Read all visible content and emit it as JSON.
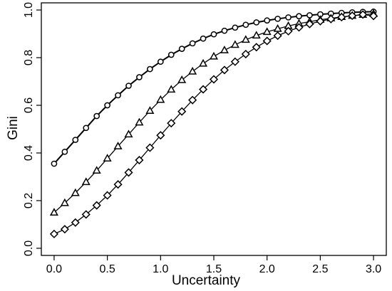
{
  "chart_data": {
    "type": "line",
    "title": "",
    "xlabel": "Uncertainty",
    "ylabel": "Gini",
    "xlim": [
      -0.12,
      3.12
    ],
    "ylim": [
      -0.03,
      1.03
    ],
    "xticks": [
      "0.0",
      "0.5",
      "1.0",
      "1.5",
      "2.0",
      "2.5",
      "3.0"
    ],
    "yticks": [
      "0.0",
      "0.2",
      "0.4",
      "0.6",
      "0.8",
      "1.0"
    ],
    "grid": false,
    "legend": "none",
    "x": [
      0.0,
      0.1,
      0.2,
      0.3,
      0.4,
      0.5,
      0.6,
      0.7,
      0.8,
      0.9,
      1.0,
      1.1,
      1.2,
      1.3,
      1.4,
      1.5,
      1.6,
      1.7,
      1.8,
      1.9,
      2.0,
      2.1,
      2.2,
      2.3,
      2.4,
      2.5,
      2.6,
      2.7,
      2.8,
      2.9,
      3.0
    ],
    "series": [
      {
        "marker": "circle",
        "values": [
          0.355,
          0.405,
          0.455,
          0.505,
          0.555,
          0.6,
          0.642,
          0.682,
          0.718,
          0.752,
          0.783,
          0.812,
          0.837,
          0.86,
          0.88,
          0.898,
          0.913,
          0.926,
          0.938,
          0.948,
          0.956,
          0.963,
          0.969,
          0.974,
          0.978,
          0.982,
          0.985,
          0.988,
          0.99,
          0.992,
          0.993
        ]
      },
      {
        "marker": "triangle",
        "values": [
          0.15,
          0.19,
          0.232,
          0.278,
          0.326,
          0.377,
          0.428,
          0.478,
          0.528,
          0.577,
          0.623,
          0.666,
          0.706,
          0.742,
          0.775,
          0.805,
          0.831,
          0.854,
          0.875,
          0.893,
          0.908,
          0.921,
          0.933,
          0.943,
          0.951,
          0.959,
          0.965,
          0.971,
          0.976,
          0.98,
          0.984
        ]
      },
      {
        "marker": "diamond",
        "values": [
          0.06,
          0.08,
          0.108,
          0.142,
          0.18,
          0.222,
          0.268,
          0.318,
          0.37,
          0.422,
          0.474,
          0.525,
          0.574,
          0.622,
          0.667,
          0.709,
          0.748,
          0.783,
          0.815,
          0.844,
          0.87,
          0.892,
          0.911,
          0.927,
          0.941,
          0.953,
          0.962,
          0.97,
          0.976,
          0.981,
          0.975
        ]
      }
    ]
  }
}
